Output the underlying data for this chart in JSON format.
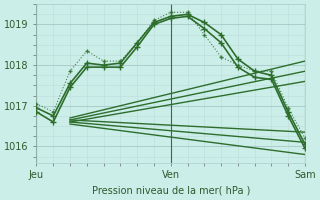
{
  "plot_bg": "#cceee8",
  "grid_major_color": "#aacccc",
  "grid_minor_color": "#bbdddd",
  "line_color": "#2d6e2d",
  "xlim": [
    0,
    48
  ],
  "ylim": [
    1015.6,
    1019.5
  ],
  "yticks": [
    1016,
    1017,
    1018,
    1019
  ],
  "xtick_positions": [
    0,
    24,
    48
  ],
  "xtick_labels": [
    "Jeu",
    "Ven",
    "Sam"
  ],
  "xlabel": "Pression niveau de la mer( hPa )",
  "vlines": [
    0,
    24,
    48
  ],
  "series": [
    {
      "x": [
        0,
        3,
        6,
        9,
        12,
        15,
        18,
        21,
        24,
        27,
        30,
        33,
        36,
        39,
        42,
        45,
        48
      ],
      "y": [
        1016.95,
        1016.75,
        1017.55,
        1018.05,
        1018.0,
        1018.05,
        1018.55,
        1019.05,
        1019.2,
        1019.25,
        1019.05,
        1018.75,
        1018.15,
        1017.85,
        1017.75,
        1016.85,
        1016.05
      ],
      "marker": "+",
      "markersize": 4,
      "linewidth": 1.2,
      "linestyle": "-",
      "alpha": 1.0
    },
    {
      "x": [
        0,
        3,
        6,
        9,
        12,
        15,
        18,
        21,
        24,
        27,
        30,
        33,
        36,
        39,
        42,
        45,
        48
      ],
      "y": [
        1016.85,
        1016.6,
        1017.45,
        1017.95,
        1017.95,
        1017.95,
        1018.45,
        1019.0,
        1019.15,
        1019.2,
        1018.9,
        1018.55,
        1017.95,
        1017.7,
        1017.65,
        1016.75,
        1015.95
      ],
      "marker": "+",
      "markersize": 4,
      "linewidth": 1.2,
      "linestyle": "-",
      "alpha": 1.0
    },
    {
      "x": [
        0,
        3,
        6,
        9,
        12,
        15,
        18,
        21,
        24,
        27,
        30,
        33,
        36,
        39,
        42,
        45,
        48
      ],
      "y": [
        1017.05,
        1016.85,
        1017.85,
        1018.35,
        1018.1,
        1018.1,
        1018.55,
        1019.1,
        1019.3,
        1019.3,
        1018.75,
        1018.2,
        1018.0,
        1017.85,
        1017.85,
        1016.95,
        1016.2
      ],
      "marker": "+",
      "markersize": 3,
      "linewidth": 0.8,
      "linestyle": ":",
      "alpha": 0.85
    },
    {
      "x": [
        6,
        48
      ],
      "y": [
        1016.7,
        1018.1
      ],
      "marker": null,
      "markersize": 0,
      "linewidth": 1.0,
      "linestyle": "-",
      "alpha": 1.0
    },
    {
      "x": [
        6,
        48
      ],
      "y": [
        1016.65,
        1017.85
      ],
      "marker": null,
      "markersize": 0,
      "linewidth": 1.0,
      "linestyle": "-",
      "alpha": 1.0
    },
    {
      "x": [
        6,
        48
      ],
      "y": [
        1016.6,
        1017.6
      ],
      "marker": null,
      "markersize": 0,
      "linewidth": 1.0,
      "linestyle": "-",
      "alpha": 1.0
    },
    {
      "x": [
        6,
        48
      ],
      "y": [
        1016.65,
        1016.35
      ],
      "marker": null,
      "markersize": 0,
      "linewidth": 1.0,
      "linestyle": "-",
      "alpha": 1.0
    },
    {
      "x": [
        6,
        48
      ],
      "y": [
        1016.6,
        1016.1
      ],
      "marker": null,
      "markersize": 0,
      "linewidth": 1.0,
      "linestyle": "-",
      "alpha": 1.0
    },
    {
      "x": [
        6,
        48
      ],
      "y": [
        1016.55,
        1015.8
      ],
      "marker": null,
      "markersize": 0,
      "linewidth": 1.0,
      "linestyle": "-",
      "alpha": 1.0
    }
  ]
}
